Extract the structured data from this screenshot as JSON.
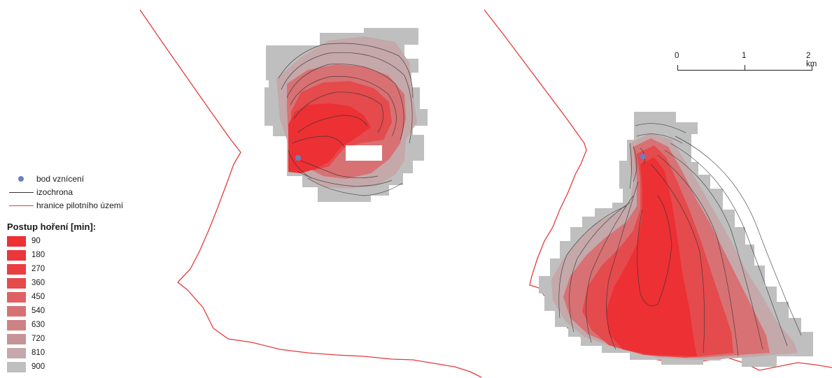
{
  "colors": {
    "boundary": "#e53b3b",
    "isochrone": "#333333",
    "ignition": "#6d7fc2"
  },
  "legend": {
    "symbols": [
      {
        "label": "bod vznícení",
        "kind": "point",
        "icon": "ignition-point-icon"
      },
      {
        "label": "izochrona",
        "kind": "line",
        "icon": "isochrone-line-icon"
      },
      {
        "label": "hranice pilotního území",
        "kind": "line",
        "icon": "boundary-line-icon"
      }
    ],
    "classes_title": "Postup hoření [min]:",
    "classes": [
      {
        "label": "90",
        "color": "#ec3034"
      },
      {
        "label": "180",
        "color": "#eb363a"
      },
      {
        "label": "270",
        "color": "#e93d40"
      },
      {
        "label": "360",
        "color": "#e54a4c"
      },
      {
        "label": "450",
        "color": "#e06163"
      },
      {
        "label": "540",
        "color": "#d87173"
      },
      {
        "label": "630",
        "color": "#cd8285"
      },
      {
        "label": "720",
        "color": "#c59397"
      },
      {
        "label": "810",
        "color": "#c4a8aa"
      },
      {
        "label": "900",
        "color": "#bfbfbf"
      }
    ]
  },
  "scalebar": {
    "labels": [
      "0",
      "1",
      "2 km"
    ]
  }
}
